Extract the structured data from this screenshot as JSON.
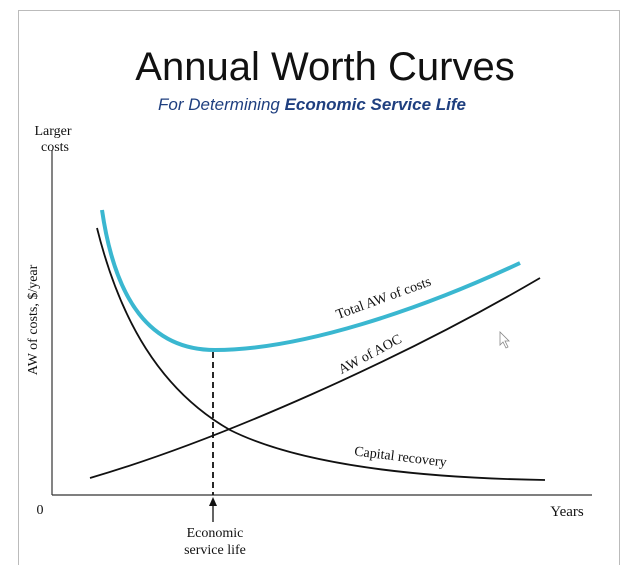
{
  "header": {
    "title": "Annual Worth Curves",
    "subtitle_prefix": "For Determining",
    "subtitle_emphasis": "Economic Service Life"
  },
  "axes": {
    "y_top_label_1": "Larger",
    "y_top_label_2": "costs",
    "y_label": "AW of costs, $/year",
    "origin": "0",
    "x_label": "Years"
  },
  "curves": {
    "total": "Total AW of costs",
    "aoc": "AW of AOC",
    "capital": "Capital recovery"
  },
  "annotation": {
    "line_1": "Economic",
    "line_2": "service life"
  }
}
